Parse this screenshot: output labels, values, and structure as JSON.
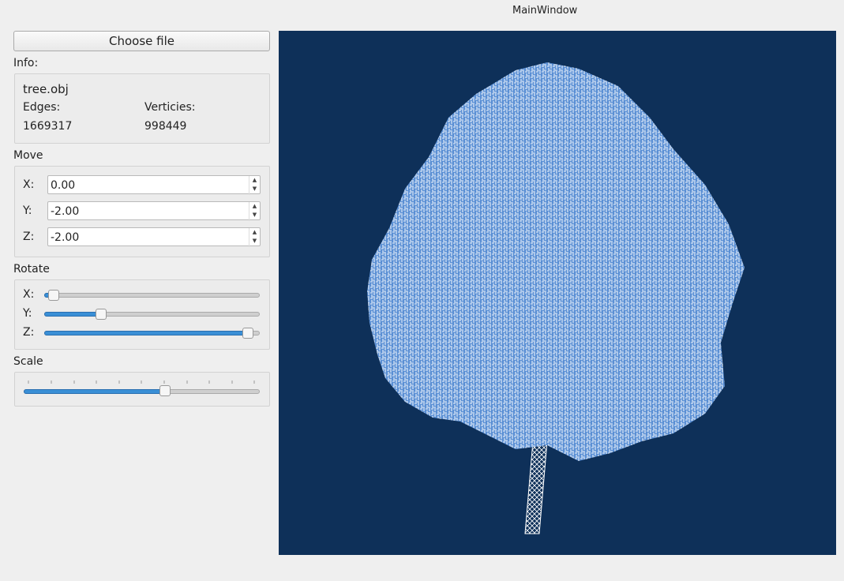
{
  "title": "MainWindow",
  "choose_file": "Choose file",
  "info": {
    "label": "Info:",
    "file": "tree.obj",
    "edges_label": "Edges:",
    "vertices_label": "Verticies:",
    "edges": "1669317",
    "vertices": "998449"
  },
  "move": {
    "label": "Move",
    "fields": [
      {
        "label": "X:",
        "value": "0.00"
      },
      {
        "label": "Y:",
        "value": "-2.00"
      },
      {
        "label": "Z:",
        "value": "-2.00"
      }
    ]
  },
  "rotate": {
    "label": "Rotate",
    "sliders": [
      "X:",
      "Y:",
      "Z:"
    ]
  },
  "scale": {
    "label": "Scale"
  }
}
